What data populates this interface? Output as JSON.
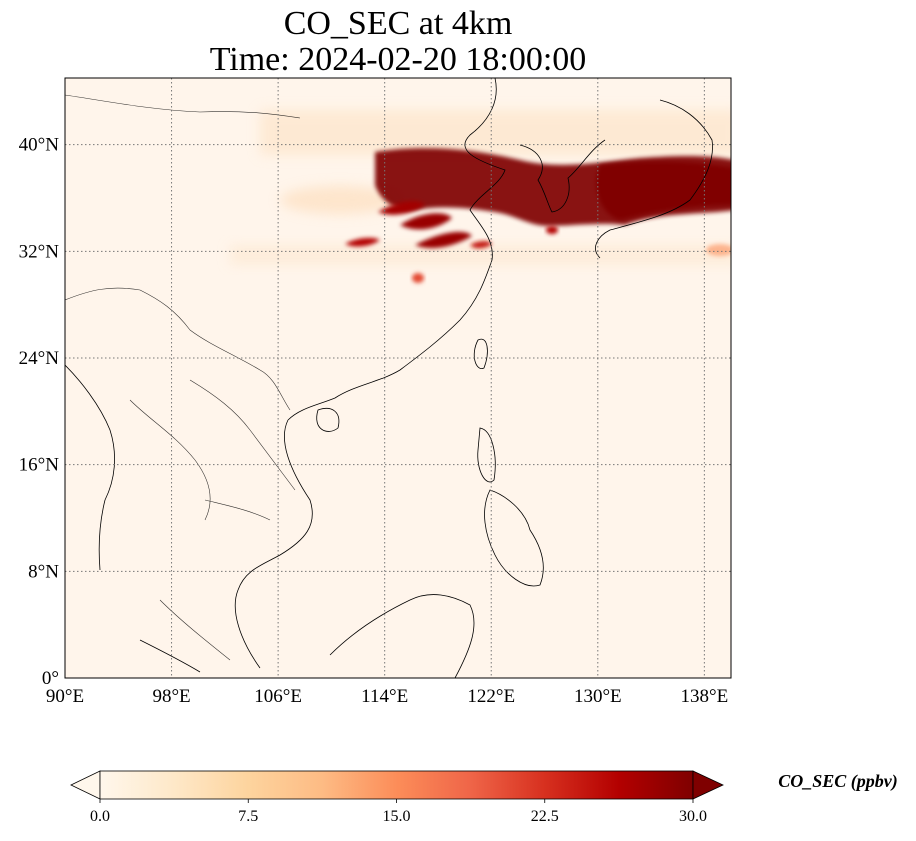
{
  "title": {
    "line1": "CO_SEC at 4km",
    "line2": "Time: 2024-02-20 18:00:00"
  },
  "map": {
    "lon_range": [
      90,
      140
    ],
    "lat_range": [
      0,
      45
    ],
    "gridlines": true,
    "lon_ticks": [
      90,
      98,
      106,
      114,
      122,
      130,
      138
    ],
    "lat_ticks": [
      0,
      8,
      16,
      24,
      32,
      40
    ],
    "lon_tick_labels": [
      "90°E",
      "98°E",
      "106°E",
      "114°E",
      "122°E",
      "130°E",
      "138°E"
    ],
    "lat_tick_labels": [
      "0°",
      "8°N",
      "16°N",
      "24°N",
      "32°N",
      "40°N"
    ],
    "plume_color": "#800000",
    "background_color": "#fff5eb"
  },
  "colorbar": {
    "label": "CO_SEC (ppbv)",
    "min": 0,
    "max": 30,
    "extend": "both",
    "ticks": [
      0,
      7.5,
      15,
      22.5,
      30
    ],
    "tick_labels": [
      "0.0",
      "7.5",
      "15.0",
      "22.5",
      "30.0"
    ],
    "colormap": "OrRd",
    "color_stops": [
      "#fff7ec",
      "#fee8c8",
      "#fdd49e",
      "#fdbb84",
      "#fc8d59",
      "#ef6548",
      "#d7301f",
      "#b30000",
      "#7f0000"
    ]
  }
}
